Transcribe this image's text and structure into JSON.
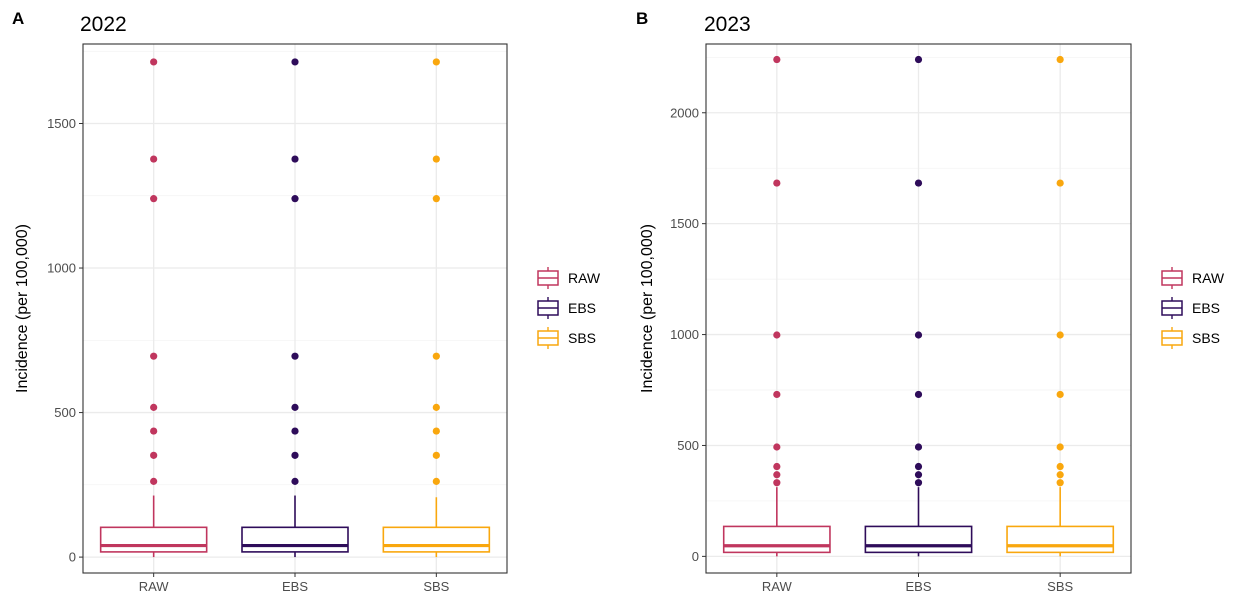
{
  "chart_data": [
    {
      "panel_label": "A",
      "title": "2022",
      "type": "box",
      "xlabel": "",
      "ylabel": "Incidence (per 100,000)",
      "categories": [
        "RAW",
        "EBS",
        "SBS"
      ],
      "ylim": [
        -55,
        1775
      ],
      "yticks": [
        0,
        500,
        1000,
        1500
      ],
      "grid": true,
      "legend_placement": "right",
      "series": [
        {
          "name": "RAW",
          "color": "#c0365e",
          "q1": 18,
          "median": 40,
          "q3": 103,
          "whisker_low": 0,
          "whisker_high": 213,
          "outliers": [
            262,
            352,
            436,
            518,
            695,
            1240,
            1377,
            1713
          ]
        },
        {
          "name": "EBS",
          "color": "#2e0c5a",
          "q1": 18,
          "median": 40,
          "q3": 103,
          "whisker_low": 0,
          "whisker_high": 213,
          "outliers": [
            262,
            352,
            436,
            518,
            695,
            1240,
            1377,
            1713
          ]
        },
        {
          "name": "SBS",
          "color": "#f9a70e",
          "q1": 18,
          "median": 40,
          "q3": 103,
          "whisker_low": 0,
          "whisker_high": 207,
          "outliers": [
            262,
            352,
            436,
            518,
            695,
            1240,
            1377,
            1713
          ]
        }
      ]
    },
    {
      "panel_label": "B",
      "title": "2023",
      "type": "box",
      "xlabel": "",
      "ylabel": "Incidence (per 100,000)",
      "categories": [
        "RAW",
        "EBS",
        "SBS"
      ],
      "ylim": [
        -75,
        2310
      ],
      "yticks": [
        0,
        500,
        1000,
        1500,
        2000
      ],
      "grid": true,
      "legend_placement": "right",
      "series": [
        {
          "name": "RAW",
          "color": "#c0365e",
          "q1": 18,
          "median": 48,
          "q3": 135,
          "whisker_low": 0,
          "whisker_high": 312,
          "outliers": [
            332,
            368,
            405,
            493,
            730,
            998,
            1683,
            2240
          ]
        },
        {
          "name": "EBS",
          "color": "#2e0c5a",
          "q1": 18,
          "median": 48,
          "q3": 135,
          "whisker_low": 0,
          "whisker_high": 312,
          "outliers": [
            332,
            368,
            405,
            493,
            730,
            998,
            1683,
            2240
          ]
        },
        {
          "name": "SBS",
          "color": "#f9a70e",
          "q1": 18,
          "median": 48,
          "q3": 135,
          "whisker_low": 0,
          "whisker_high": 312,
          "outliers": [
            332,
            368,
            405,
            493,
            730,
            998,
            1683,
            2240
          ]
        }
      ]
    }
  ]
}
